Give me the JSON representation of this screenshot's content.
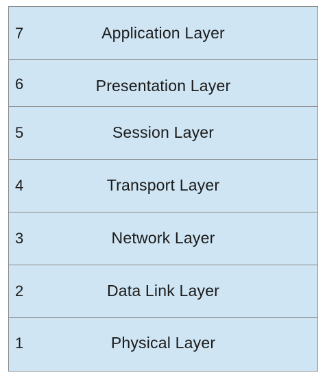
{
  "layers": [
    {
      "number": "7",
      "name": "Application Layer"
    },
    {
      "number": "6",
      "name": "Presentation Layer"
    },
    {
      "number": "5",
      "name": "Session Layer"
    },
    {
      "number": "4",
      "name": "Transport Layer"
    },
    {
      "number": "3",
      "name": "Network Layer"
    },
    {
      "number": "2",
      "name": "Data Link Layer"
    },
    {
      "number": "1",
      "name": "Physical Layer"
    }
  ],
  "colors": {
    "fill": "#cfe5f3",
    "border": "#8a8a8a",
    "text": "#1a1a1a"
  }
}
